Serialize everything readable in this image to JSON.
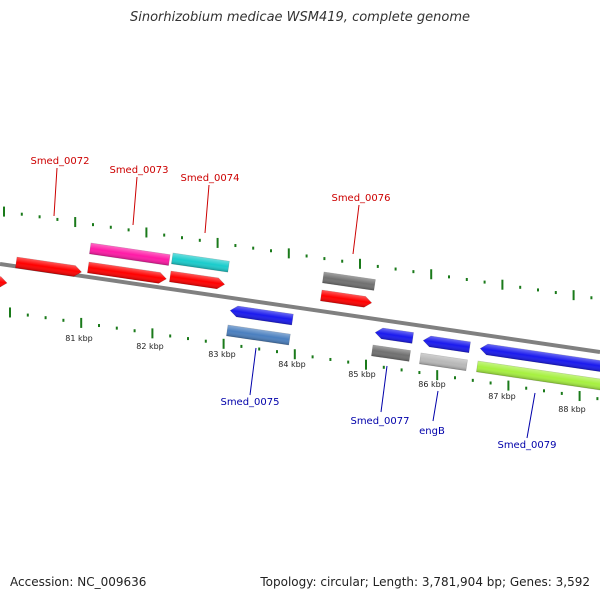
{
  "title": "Sinorhizobium medicae WSM419, complete genome",
  "footer": {
    "accession": "Accession: NC_009636",
    "topology": "Topology: circular; Length: 3,781,904 bp; Genes: 3,592"
  },
  "colors": {
    "backbone": "#808080",
    "tick": "#1a7a1a",
    "label_forward": "#cc0000",
    "label_reverse": "#0000aa"
  },
  "scale_labels": [
    "81 kbp",
    "82 kbp",
    "83 kbp",
    "84 kbp",
    "85 kbp",
    "86 kbp",
    "87 kbp",
    "88 kbp"
  ],
  "gene_labels": [
    {
      "text": "Smed_0072",
      "strand": "forward"
    },
    {
      "text": "Smed_0073",
      "strand": "forward"
    },
    {
      "text": "Smed_0074",
      "strand": "forward"
    },
    {
      "text": "Smed_0076",
      "strand": "forward"
    },
    {
      "text": "Smed_0075",
      "strand": "reverse"
    },
    {
      "text": "Smed_0077",
      "strand": "reverse"
    },
    {
      "text": "engB",
      "strand": "reverse"
    },
    {
      "text": "Smed_0079",
      "strand": "reverse"
    }
  ],
  "features": [
    {
      "name": "smed-0072-cds",
      "color": "#ff0000",
      "direction": "right"
    },
    {
      "name": "smed-0072-gene",
      "color": "#ff0000",
      "direction": "right"
    },
    {
      "name": "smed-0073-gene",
      "color": "#ff1aa6",
      "direction": "none"
    },
    {
      "name": "smed-0073-cds",
      "color": "#ff0000",
      "direction": "right"
    },
    {
      "name": "smed-0074-gene",
      "color": "#1acccc",
      "direction": "none"
    },
    {
      "name": "smed-0074-cds",
      "color": "#ff0000",
      "direction": "right"
    },
    {
      "name": "smed-0075-gene",
      "color": "#1a1aee",
      "direction": "left"
    },
    {
      "name": "smed-0075-cds",
      "color": "#4a7fbf",
      "direction": "none"
    },
    {
      "name": "smed-0076-gene",
      "color": "#707070",
      "direction": "none"
    },
    {
      "name": "smed-0076-cds",
      "color": "#ff0000",
      "direction": "right"
    },
    {
      "name": "smed-0077-gene",
      "color": "#1a1aee",
      "direction": "left"
    },
    {
      "name": "smed-0077-cds",
      "color": "#707070",
      "direction": "none"
    },
    {
      "name": "engb-gene",
      "color": "#1a1aee",
      "direction": "left"
    },
    {
      "name": "engb-cds",
      "color": "#b8b8b8",
      "direction": "none"
    },
    {
      "name": "smed-0079-gene",
      "color": "#1a1aee",
      "direction": "left"
    },
    {
      "name": "smed-0079-cds",
      "color": "#a6f040",
      "direction": "none"
    }
  ]
}
